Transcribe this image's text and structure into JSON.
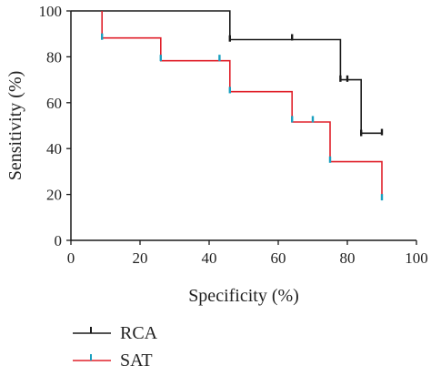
{
  "chart_data": {
    "type": "line",
    "subtype": "step (Kaplan-Meier style) with censor marks",
    "xlabel": "Specificity (%)",
    "ylabel": "Sensitivity (%)",
    "xlim": [
      0,
      100
    ],
    "ylim": [
      0,
      100
    ],
    "x_ticks": [
      "0",
      "20",
      "40",
      "60",
      "80",
      "100"
    ],
    "y_ticks": [
      "0",
      "20",
      "40",
      "60",
      "80",
      "100"
    ],
    "grid": false,
    "legend_position": "bottom-left, below plot",
    "series": [
      {
        "name": "RCA",
        "color": "#1a1a1a",
        "marker_color": "#1a1a1a",
        "steps": [
          [
            0,
            100
          ],
          [
            46,
            100
          ],
          [
            46,
            87.5
          ],
          [
            78,
            87.5
          ],
          [
            78,
            70
          ],
          [
            84,
            70
          ],
          [
            84,
            46.7
          ],
          [
            90,
            46.7
          ]
        ],
        "censor_marks": [
          [
            46,
            88
          ],
          [
            64,
            88.5
          ],
          [
            78,
            70.5
          ],
          [
            80,
            70.5
          ],
          [
            84,
            46.8
          ],
          [
            90,
            47.2
          ]
        ]
      },
      {
        "name": "SAT",
        "color": "#e0202a",
        "marker_color": "#1aa0c0",
        "steps": [
          [
            9,
            100
          ],
          [
            9,
            88.2
          ],
          [
            26,
            88.2
          ],
          [
            26,
            78.3
          ],
          [
            46,
            78.3
          ],
          [
            46,
            64.8
          ],
          [
            64,
            64.8
          ],
          [
            64,
            51.6
          ],
          [
            75,
            51.6
          ],
          [
            75,
            34.3
          ],
          [
            90,
            34.3
          ],
          [
            90,
            18.6
          ]
        ],
        "censor_marks": [
          [
            9,
            88.8
          ],
          [
            26,
            79.5
          ],
          [
            43,
            79.5
          ],
          [
            46,
            65.5
          ],
          [
            64,
            52.8
          ],
          [
            70,
            52.8
          ],
          [
            75,
            35.2
          ],
          [
            90,
            18.8
          ]
        ]
      }
    ]
  }
}
